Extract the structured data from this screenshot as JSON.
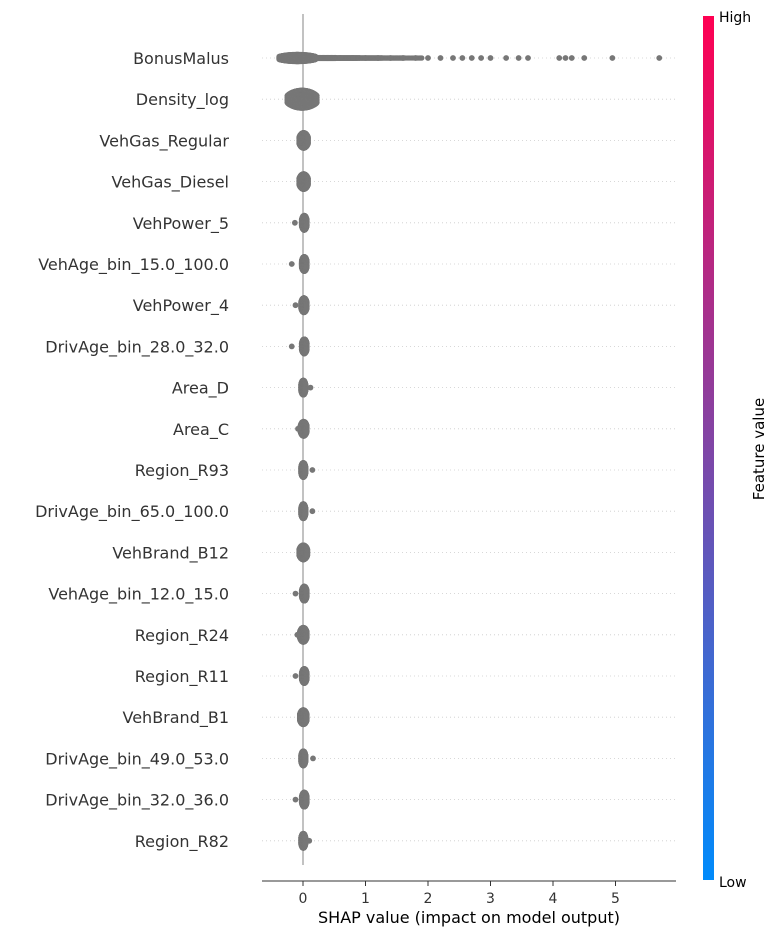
{
  "chart_data": {
    "type": "scatter",
    "subtype": "shap-beeswarm-summary",
    "title": "",
    "xlabel": "SHAP value (impact on model output)",
    "xlim": [
      -0.65,
      5.95
    ],
    "xticks": [
      0,
      1,
      2,
      3,
      4,
      5
    ],
    "point_color": "#777777",
    "colorbar": {
      "title": "Feature value",
      "high_label": "High",
      "low_label": "Low",
      "colors": [
        "#008bfb",
        "#ff0052"
      ]
    },
    "features": [
      {
        "name": "BonusMalus",
        "min": -0.38,
        "max": 5.7,
        "core": [
          -0.38,
          0.2
        ],
        "spread": 0.16,
        "outliers": [
          0.4,
          0.6,
          0.8,
          1.0,
          1.2,
          1.4,
          1.6,
          1.8,
          2.0,
          2.2,
          2.4,
          2.55,
          2.7,
          2.85,
          3.0,
          3.25,
          3.45,
          3.6,
          4.1,
          4.2,
          4.3,
          4.5,
          4.95,
          5.7
        ]
      },
      {
        "name": "Density_log",
        "min": -0.4,
        "max": 0.28,
        "core": [
          -0.25,
          0.22
        ],
        "spread": 0.42,
        "outliers": []
      },
      {
        "name": "VehGas_Regular",
        "min": -0.06,
        "max": 0.08,
        "core": [
          -0.06,
          0.08
        ],
        "spread": 0.36,
        "outliers": []
      },
      {
        "name": "VehGas_Diesel",
        "min": -0.06,
        "max": 0.08,
        "core": [
          -0.06,
          0.08
        ],
        "spread": 0.36,
        "outliers": []
      },
      {
        "name": "VehPower_5",
        "min": -0.13,
        "max": 0.07,
        "core": [
          -0.02,
          0.06
        ],
        "spread": 0.34,
        "outliers": [
          -0.13
        ]
      },
      {
        "name": "VehAge_bin_15.0_100.0",
        "min": -0.18,
        "max": 0.06,
        "core": [
          -0.02,
          0.06
        ],
        "spread": 0.34,
        "outliers": [
          -0.18
        ]
      },
      {
        "name": "VehPower_4",
        "min": -0.12,
        "max": 0.07,
        "core": [
          -0.03,
          0.06
        ],
        "spread": 0.34,
        "outliers": [
          -0.12
        ]
      },
      {
        "name": "DrivAge_bin_28.0_32.0",
        "min": -0.18,
        "max": 0.06,
        "core": [
          -0.02,
          0.06
        ],
        "spread": 0.34,
        "outliers": [
          -0.18
        ]
      },
      {
        "name": "Area_D",
        "min": -0.03,
        "max": 0.12,
        "core": [
          -0.03,
          0.04
        ],
        "spread": 0.34,
        "outliers": [
          0.12
        ]
      },
      {
        "name": "Area_C",
        "min": -0.08,
        "max": 0.06,
        "core": [
          -0.04,
          0.06
        ],
        "spread": 0.34,
        "outliers": [
          -0.08
        ]
      },
      {
        "name": "Region_R93",
        "min": -0.03,
        "max": 0.15,
        "core": [
          -0.03,
          0.04
        ],
        "spread": 0.34,
        "outliers": [
          0.15
        ]
      },
      {
        "name": "DrivAge_bin_65.0_100.0",
        "min": -0.03,
        "max": 0.15,
        "core": [
          -0.03,
          0.04
        ],
        "spread": 0.34,
        "outliers": [
          0.15
        ]
      },
      {
        "name": "VehBrand_B12",
        "min": -0.08,
        "max": 0.07,
        "core": [
          -0.06,
          0.07
        ],
        "spread": 0.34,
        "outliers": []
      },
      {
        "name": "VehAge_bin_12.0_15.0",
        "min": -0.12,
        "max": 0.06,
        "core": [
          -0.02,
          0.06
        ],
        "spread": 0.34,
        "outliers": [
          -0.12
        ]
      },
      {
        "name": "Region_R24",
        "min": -0.09,
        "max": 0.06,
        "core": [
          -0.05,
          0.06
        ],
        "spread": 0.34,
        "outliers": [
          -0.09
        ]
      },
      {
        "name": "Region_R11",
        "min": -0.12,
        "max": 0.06,
        "core": [
          -0.02,
          0.06
        ],
        "spread": 0.34,
        "outliers": [
          -0.12
        ]
      },
      {
        "name": "VehBrand_B1",
        "min": -0.08,
        "max": 0.06,
        "core": [
          -0.05,
          0.06
        ],
        "spread": 0.34,
        "outliers": []
      },
      {
        "name": "DrivAge_bin_49.0_53.0",
        "min": -0.03,
        "max": 0.16,
        "core": [
          -0.03,
          0.04
        ],
        "spread": 0.34,
        "outliers": [
          0.16
        ]
      },
      {
        "name": "DrivAge_bin_32.0_36.0",
        "min": -0.12,
        "max": 0.06,
        "core": [
          -0.02,
          0.06
        ],
        "spread": 0.34,
        "outliers": [
          -0.12
        ]
      },
      {
        "name": "Region_R82",
        "min": -0.03,
        "max": 0.1,
        "core": [
          -0.03,
          0.04
        ],
        "spread": 0.34,
        "outliers": [
          0.1
        ]
      }
    ]
  }
}
